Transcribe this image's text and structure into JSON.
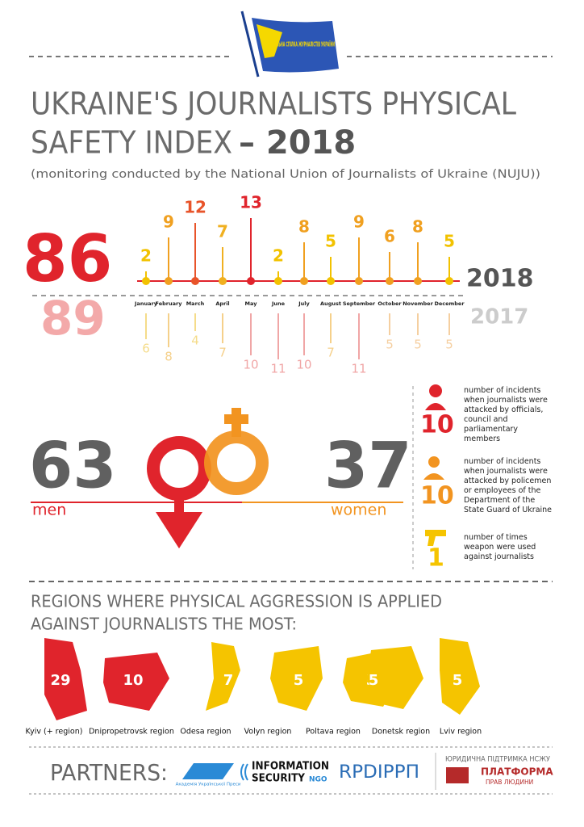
{
  "header": {
    "logo_text": "НАЦІОНАЛЬНА СПІЛКА ЖУРНАЛІСТІВ УКРАЇНИ",
    "title_line1": "UKRAINE'S JOURNALISTS PHYSICAL",
    "title_line2": "SAFETY INDEX",
    "title_year": "– 2018",
    "subtitle": "(monitoring conducted by the National Union of Journalists of Ukraine (NUJU))"
  },
  "timeline": {
    "months": [
      "January",
      "February",
      "March",
      "April",
      "May",
      "June",
      "July",
      "August",
      "September",
      "October",
      "November",
      "December"
    ],
    "years": [
      {
        "label": "2018",
        "total": 86,
        "values": [
          2,
          9,
          12,
          7,
          13,
          2,
          8,
          5,
          9,
          6,
          8,
          5
        ],
        "colors": [
          "#f2c200",
          "#f0a020",
          "#e8542a",
          "#f0b020",
          "#e0242c",
          "#f2c200",
          "#f0a020",
          "#f2c200",
          "#f0a020",
          "#f0a020",
          "#f0a020",
          "#f2c200"
        ]
      },
      {
        "label": "2017",
        "total": 89,
        "values": [
          6,
          8,
          4,
          7,
          10,
          11,
          10,
          7,
          11,
          5,
          5,
          5
        ],
        "colors": [
          "#f5dc8a",
          "#f5d08a",
          "#f5dc8a",
          "#f5d08a",
          "#f0a6a6",
          "#f0a6a6",
          "#f0a6a6",
          "#f5d08a",
          "#f0a6a6",
          "#f5cfa0",
          "#f5cfa0",
          "#f5cfa0"
        ]
      }
    ]
  },
  "gender": {
    "men": {
      "value": 63,
      "label": "men"
    },
    "women": {
      "value": 37,
      "label": "women"
    }
  },
  "facts": [
    {
      "value": 10,
      "text": "number of incidents when journalists were attacked by officials, council and parliamentary members"
    },
    {
      "value": 10,
      "text": "number of incidents when journalists were attacked by policemen or employees of the Department of the State Guard of Ukraine"
    },
    {
      "value": 1,
      "text": "number of times weapon were used against journalists"
    }
  ],
  "regions": {
    "title_line1": "REGIONS WHERE PHYSICAL AGGRESSION IS APPLIED",
    "title_line2": "AGAINST JOURNALISTS THE MOST:",
    "items": [
      {
        "name": "Kyiv (+ region)",
        "value": 29
      },
      {
        "name": "Dnipropetrovsk region",
        "value": 10
      },
      {
        "name": "Odesa region",
        "value": 7
      },
      {
        "name": "Volyn region",
        "value": 5
      },
      {
        "name": "Poltava region",
        "value": 5
      },
      {
        "name": "Donetsk region",
        "value": 5
      },
      {
        "name": "Lviv region",
        "value": 5
      }
    ]
  },
  "partners": {
    "label": "PARTNERS:",
    "logos": [
      "Академія Української Преси",
      "INFORMATION",
      "SECURITY",
      "NGO",
      "RPDIPPП",
      "ЮРИДИЧНА ПІДТРИМКА НСЖУ",
      "ПЛАТФОРМА",
      "ПРАВ ЛЮДИНИ"
    ]
  }
}
